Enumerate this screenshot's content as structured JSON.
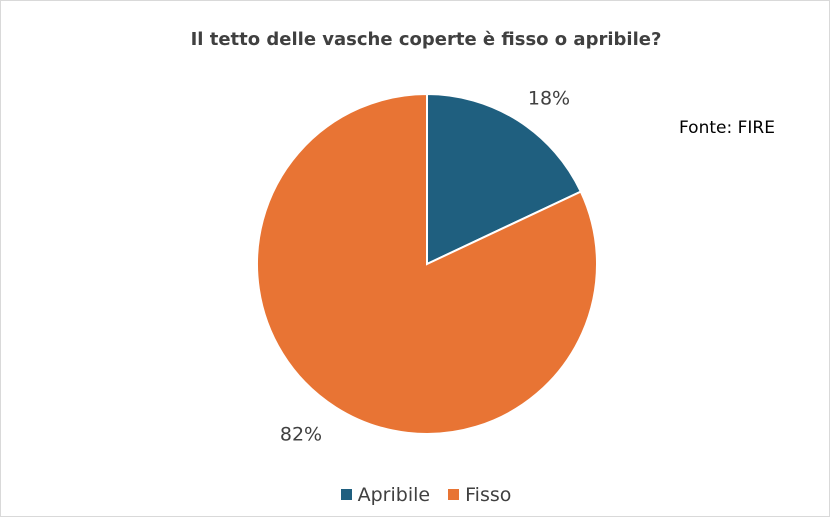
{
  "chart_data": {
    "type": "pie",
    "title": "Il tetto delle vasche coperte è fisso o apribile?",
    "source": "Fonte: FIRE",
    "slices": [
      {
        "name": "Apribile",
        "value": 18,
        "label": "18%",
        "color": "#1f5f7f"
      },
      {
        "name": "Fisso",
        "value": 82,
        "label": "82%",
        "color": "#e87434"
      }
    ],
    "legend_position": "bottom"
  }
}
